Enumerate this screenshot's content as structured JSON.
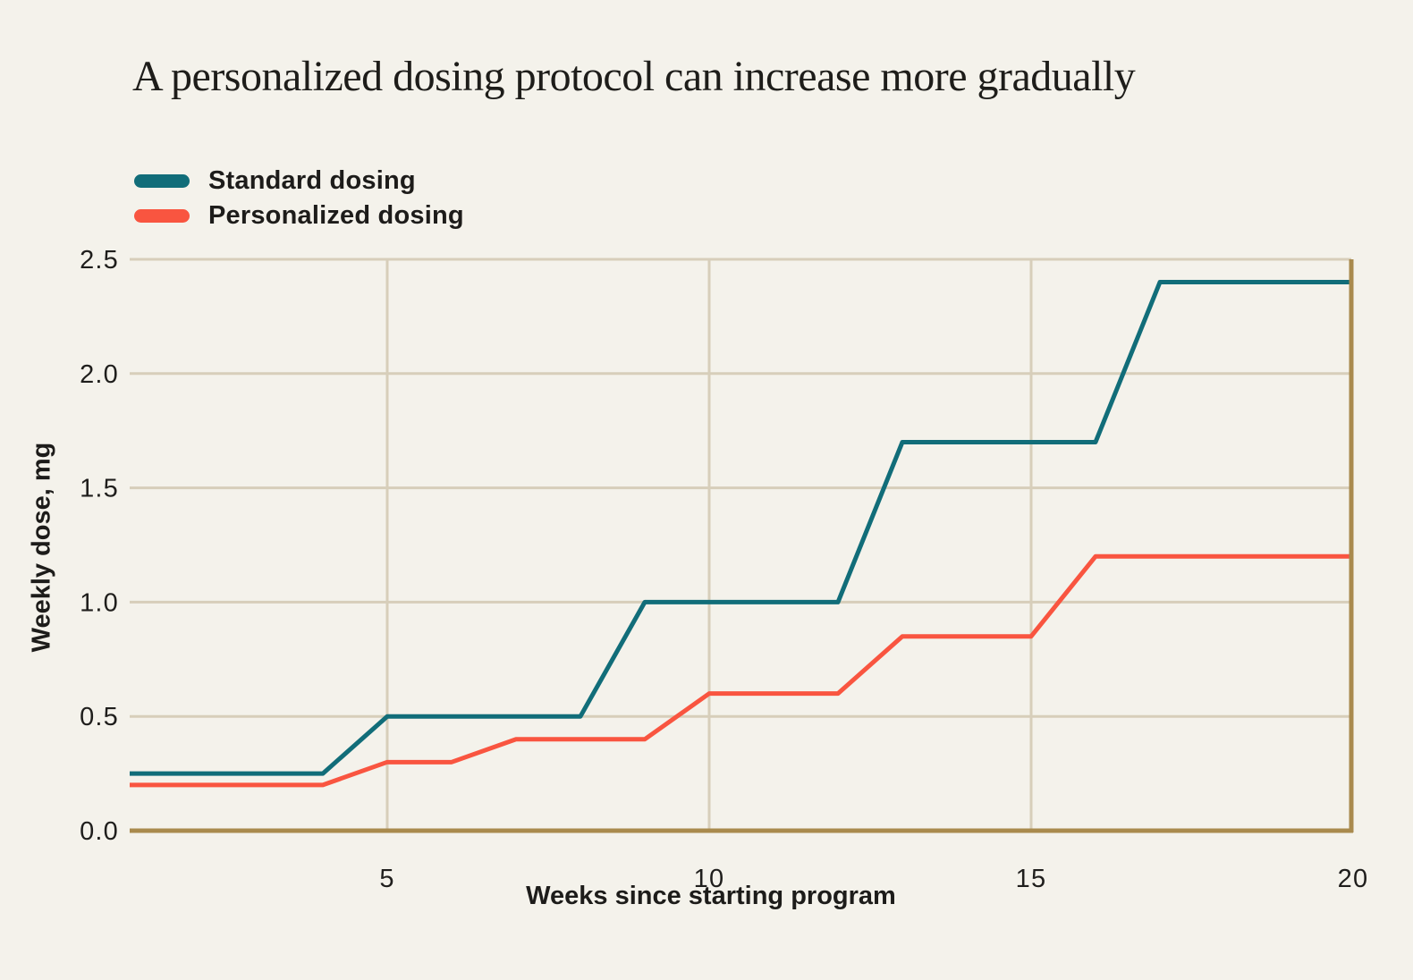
{
  "title": "A personalized dosing protocol can increase more gradually",
  "legend": {
    "series": [
      {
        "label": "Standard dosing",
        "color": "#116d79"
      },
      {
        "label": "Personalized dosing",
        "color": "#f95540"
      }
    ]
  },
  "colors": {
    "background": "#f4f2eb",
    "gridline": "#d7ceba",
    "axis_frame": "#a98a4d",
    "text": "#1e1d1a",
    "standard_line": "#116d79",
    "personalized_line": "#f95540"
  },
  "chart_data": {
    "type": "line",
    "title": "A personalized dosing protocol can increase more gradually",
    "xlabel": "Weeks since starting program",
    "ylabel": "Weekly dose, mg",
    "x": [
      1,
      2,
      3,
      4,
      5,
      6,
      7,
      8,
      9,
      10,
      11,
      12,
      13,
      14,
      15,
      16,
      17,
      18,
      19,
      20
    ],
    "series": [
      {
        "name": "Standard dosing",
        "color": "#116d79",
        "values": [
          0.25,
          0.25,
          0.25,
          0.25,
          0.5,
          0.5,
          0.5,
          0.5,
          1.0,
          1.0,
          1.0,
          1.0,
          1.7,
          1.7,
          1.7,
          1.7,
          2.4,
          2.4,
          2.4,
          2.4
        ]
      },
      {
        "name": "Personalized dosing",
        "color": "#f95540",
        "values": [
          0.2,
          0.2,
          0.2,
          0.2,
          0.3,
          0.3,
          0.4,
          0.4,
          0.4,
          0.6,
          0.6,
          0.6,
          0.85,
          0.85,
          0.85,
          1.2,
          1.2,
          1.2,
          1.2,
          1.2
        ]
      }
    ],
    "xlim": [
      1,
      20
    ],
    "ylim": [
      0,
      2.5
    ],
    "xticks": [
      5,
      10,
      15,
      20
    ],
    "xtick_labels": [
      "5",
      "10",
      "15",
      "20"
    ],
    "yticks": [
      0.0,
      0.5,
      1.0,
      1.5,
      2.0,
      2.5
    ],
    "ytick_labels": [
      "0.0",
      "0.5",
      "1.0",
      "1.5",
      "2.0",
      "2.5"
    ],
    "grid": true,
    "legend_position": "top-left"
  }
}
